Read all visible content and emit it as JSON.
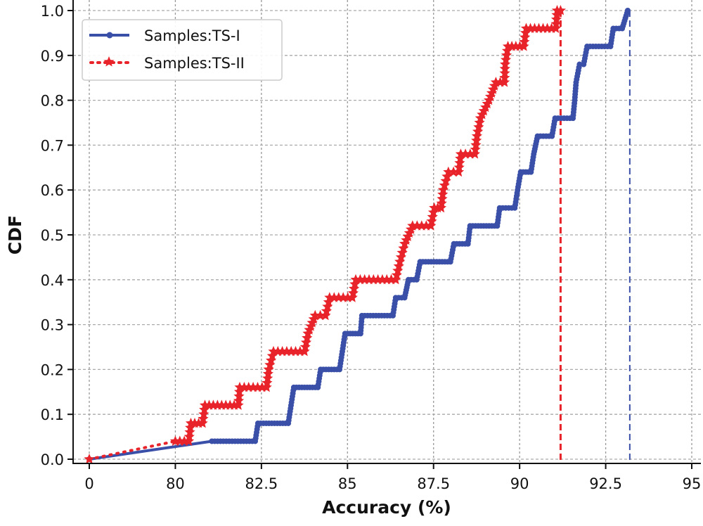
{
  "chart_data": {
    "type": "line",
    "title": "",
    "xlabel": "Accuracy (%)",
    "ylabel": "CDF",
    "x_ticks": [
      0,
      80,
      82.5,
      85,
      87.5,
      90,
      92.5,
      95
    ],
    "x_tick_labels": [
      "0",
      "80",
      "82.5",
      "85",
      "87.5",
      "90",
      "92.5",
      "95"
    ],
    "y_ticks": [
      0,
      0.1,
      0.2,
      0.3,
      0.4,
      0.5,
      0.6,
      0.7,
      0.8,
      0.9,
      1.0
    ],
    "y_tick_labels": [
      "0.0",
      "0.1",
      "0.2",
      "0.3",
      "0.4",
      "0.5",
      "0.6",
      "0.7",
      "0.8",
      "0.9",
      "1.0"
    ],
    "ylim": [
      0,
      1.0
    ],
    "grid": true,
    "legend_position": "top-left",
    "series": [
      {
        "name": "Samples:TS-I",
        "color": "#3a4fa8",
        "linestyle": "solid",
        "marker": "circle",
        "points": [
          [
            0,
            0
          ],
          [
            81.06,
            0.04
          ],
          [
            82.32,
            0.04
          ],
          [
            82.4,
            0.08
          ],
          [
            83.28,
            0.08
          ],
          [
            83.36,
            0.12
          ],
          [
            83.44,
            0.16
          ],
          [
            84.14,
            0.16
          ],
          [
            84.22,
            0.2
          ],
          [
            84.77,
            0.2
          ],
          [
            84.85,
            0.24
          ],
          [
            84.93,
            0.28
          ],
          [
            85.38,
            0.28
          ],
          [
            85.42,
            0.32
          ],
          [
            86.32,
            0.32
          ],
          [
            86.4,
            0.36
          ],
          [
            86.66,
            0.36
          ],
          [
            86.77,
            0.4
          ],
          [
            87.01,
            0.4
          ],
          [
            87.11,
            0.44
          ],
          [
            87.99,
            0.44
          ],
          [
            88.09,
            0.48
          ],
          [
            88.5,
            0.48
          ],
          [
            88.56,
            0.52
          ],
          [
            89.35,
            0.52
          ],
          [
            89.42,
            0.56
          ],
          [
            89.86,
            0.56
          ],
          [
            89.94,
            0.6
          ],
          [
            90.03,
            0.64
          ],
          [
            90.33,
            0.64
          ],
          [
            90.41,
            0.68
          ],
          [
            90.52,
            0.72
          ],
          [
            90.94,
            0.72
          ],
          [
            91.03,
            0.76
          ],
          [
            91.55,
            0.76
          ],
          [
            91.6,
            0.8
          ],
          [
            91.64,
            0.84
          ],
          [
            91.74,
            0.88
          ],
          [
            91.86,
            0.88
          ],
          [
            91.96,
            0.92
          ],
          [
            92.64,
            0.92
          ],
          [
            92.72,
            0.96
          ],
          [
            92.98,
            0.96
          ],
          [
            93.14,
            1.0
          ]
        ]
      },
      {
        "name": "Samples:TS-II",
        "color": "#e8232a",
        "linestyle": "dotted",
        "marker": "star",
        "points": [
          [
            0,
            0
          ],
          [
            80.0,
            0.04
          ],
          [
            80.39,
            0.04
          ],
          [
            80.45,
            0.08
          ],
          [
            80.79,
            0.08
          ],
          [
            80.86,
            0.12
          ],
          [
            81.83,
            0.12
          ],
          [
            81.87,
            0.16
          ],
          [
            82.65,
            0.16
          ],
          [
            82.71,
            0.2
          ],
          [
            82.85,
            0.24
          ],
          [
            83.75,
            0.24
          ],
          [
            83.85,
            0.28
          ],
          [
            84.06,
            0.32
          ],
          [
            84.36,
            0.32
          ],
          [
            84.48,
            0.36
          ],
          [
            85.14,
            0.36
          ],
          [
            85.24,
            0.4
          ],
          [
            86.4,
            0.4
          ],
          [
            86.52,
            0.44
          ],
          [
            86.66,
            0.48
          ],
          [
            86.89,
            0.52
          ],
          [
            87.42,
            0.52
          ],
          [
            87.52,
            0.56
          ],
          [
            87.72,
            0.56
          ],
          [
            87.78,
            0.6
          ],
          [
            87.93,
            0.64
          ],
          [
            88.23,
            0.64
          ],
          [
            88.29,
            0.68
          ],
          [
            88.7,
            0.68
          ],
          [
            88.76,
            0.72
          ],
          [
            88.86,
            0.76
          ],
          [
            89.11,
            0.8
          ],
          [
            89.31,
            0.84
          ],
          [
            89.56,
            0.84
          ],
          [
            89.58,
            0.88
          ],
          [
            89.66,
            0.92
          ],
          [
            90.12,
            0.92
          ],
          [
            90.19,
            0.96
          ],
          [
            91.05,
            0.96
          ],
          [
            91.09,
            1.0
          ],
          [
            91.19,
            1.0
          ]
        ]
      }
    ],
    "vlines": [
      {
        "x": 91.19,
        "color": "#e8232a",
        "linestyle": "dashed"
      },
      {
        "x": 93.2,
        "color": "#3a4fa8",
        "linestyle": "dashed"
      }
    ]
  }
}
